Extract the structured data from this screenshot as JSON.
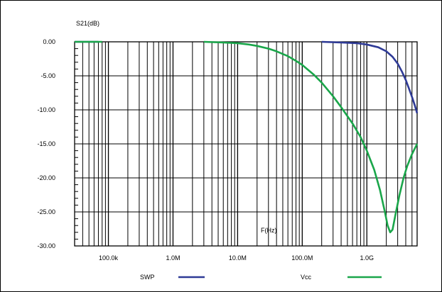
{
  "chart_data": {
    "type": "line",
    "title": "",
    "ylabel": "S21(dB)",
    "xlabel": "F(Hz)",
    "x_scale": "log",
    "xlim": [
      30000,
      6000000000
    ],
    "ylim": [
      -30,
      0
    ],
    "grid": true,
    "y_ticks": [
      {
        "value": 0,
        "label": "0.00"
      },
      {
        "value": -5,
        "label": "-5.00"
      },
      {
        "value": -10,
        "label": "-10.00"
      },
      {
        "value": -15,
        "label": "-15.00"
      },
      {
        "value": -20,
        "label": "-20.00"
      },
      {
        "value": -25,
        "label": "-25.00"
      },
      {
        "value": -30,
        "label": "-30.00"
      }
    ],
    "x_ticks": [
      {
        "value": 100000,
        "label": "100.0k"
      },
      {
        "value": 1000000,
        "label": "1.0M"
      },
      {
        "value": 10000000,
        "label": "10.0M"
      },
      {
        "value": 100000000,
        "label": "100.0M"
      },
      {
        "value": 1000000000,
        "label": "1.0G"
      }
    ],
    "legend_position": "bottom",
    "series": [
      {
        "name": "SWP",
        "color": "#2e3a96",
        "segments": [
          {
            "x": [
              30000,
              70000
            ],
            "y": [
              0,
              0
            ]
          },
          {
            "x": [
              200000000,
              400000000,
              700000000,
              1000000000,
              1500000000,
              2000000000,
              2500000000,
              3000000000,
              3500000000,
              4000000000,
              4500000000,
              5000000000,
              5500000000,
              6000000000
            ],
            "y": [
              0,
              -0.1,
              -0.2,
              -0.4,
              -0.8,
              -1.4,
              -2.2,
              -3.2,
              -4.4,
              -5.6,
              -6.9,
              -8.1,
              -9.3,
              -10.5
            ]
          }
        ]
      },
      {
        "name": "Vcc",
        "color": "#1aa64a",
        "segments": [
          {
            "x": [
              30000,
              80000
            ],
            "y": [
              0,
              0
            ]
          },
          {
            "x": [
              3000000,
              6000000,
              10000000,
              15000000,
              20000000,
              30000000,
              40000000,
              60000000,
              80000000,
              100000000,
              150000000,
              200000000,
              300000000,
              400000000,
              600000000,
              800000000,
              1000000000,
              1300000000,
              1600000000,
              1900000000,
              2100000000,
              2300000000,
              2500000000,
              2800000000,
              3200000000,
              3700000000,
              4200000000,
              5000000000,
              6000000000
            ],
            "y": [
              0,
              -0.1,
              -0.2,
              -0.4,
              -0.6,
              -1.0,
              -1.4,
              -2.1,
              -2.8,
              -3.4,
              -4.8,
              -6.0,
              -8.0,
              -9.6,
              -12.0,
              -14.0,
              -16.0,
              -18.8,
              -21.8,
              -25.0,
              -27.0,
              -28.0,
              -27.6,
              -25.2,
              -22.5,
              -20.0,
              -18.3,
              -16.5,
              -15.0
            ]
          }
        ]
      }
    ]
  }
}
